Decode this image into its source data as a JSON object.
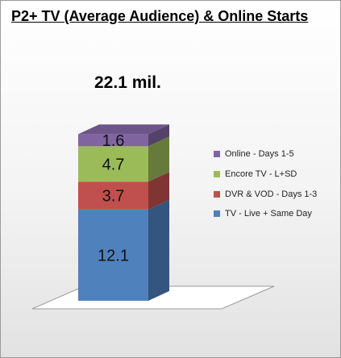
{
  "chart_data": {
    "type": "bar",
    "stacked": true,
    "three_d": true,
    "title": "P2+ TV (Average Audience) & Online Starts",
    "total_label": "22.1 mil.",
    "categories": [
      ""
    ],
    "series": [
      {
        "name": "TV - Live + Same Day",
        "value": 12.1,
        "label": "12.1",
        "color": "#4f81bd"
      },
      {
        "name": "DVR & VOD - Days 1-3",
        "value": 3.7,
        "label": "3.7",
        "color": "#c0504d"
      },
      {
        "name": "Encore TV - L+SD",
        "value": 4.7,
        "label": "4.7",
        "color": "#9bbb59"
      },
      {
        "name": "Online - Days 1-5",
        "value": 1.6,
        "label": "1.6",
        "color": "#8064a2"
      }
    ],
    "legend_order": [
      "Online - Days 1-5",
      "Encore TV - L+SD",
      "DVR & VOD - Days 1-3",
      "TV - Live + Same Day"
    ],
    "legend_position": "right",
    "grid": false,
    "axes_visible": false
  }
}
